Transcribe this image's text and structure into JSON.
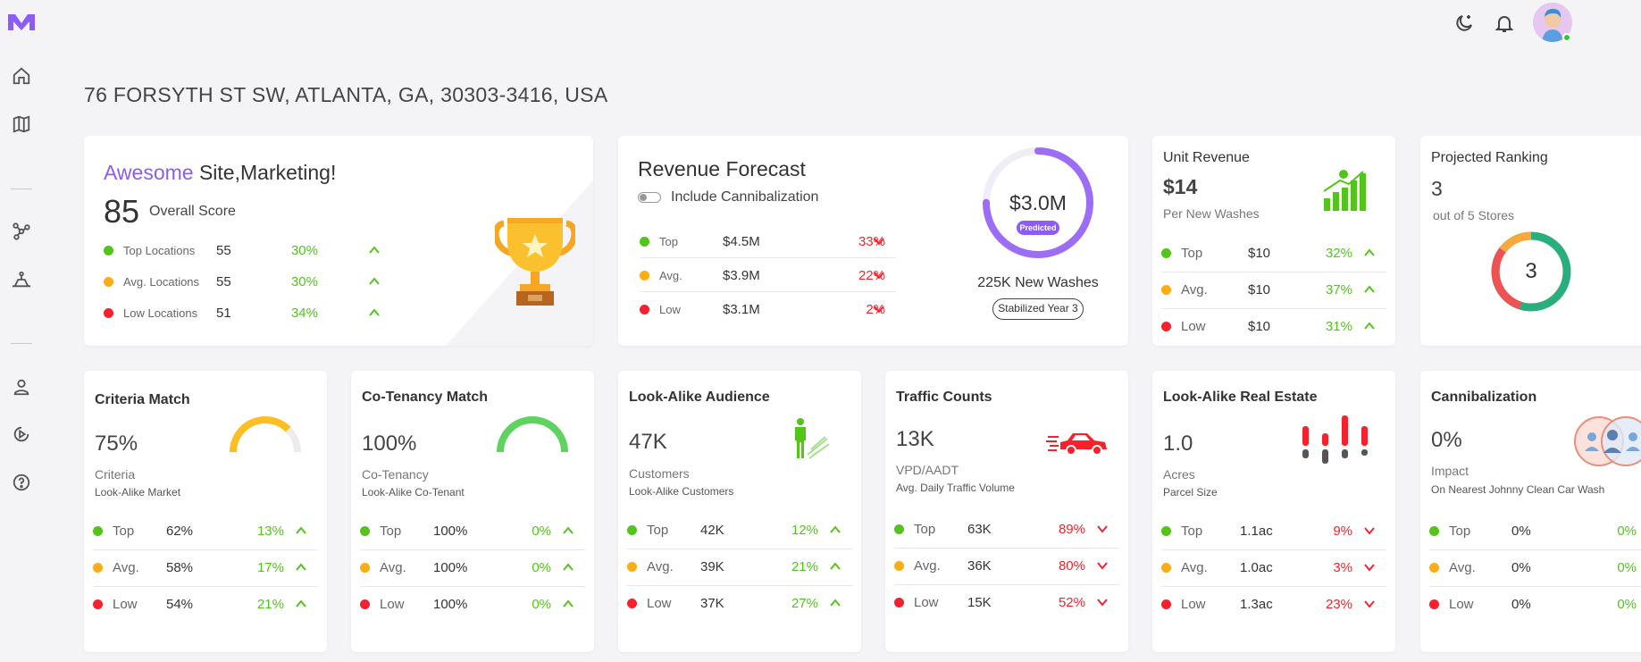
{
  "colors": {
    "accent": "#8b5cf6",
    "green": "#52c41a",
    "yellow": "#faad14",
    "red": "#f5222d"
  },
  "page_title": "76 FORSYTH ST SW, ATLANTA, GA, 30303-3416, USA",
  "score_card": {
    "title_accent": "Awesome",
    "title_rest": " Site,Marketing!",
    "score": "85",
    "score_label": "Overall Score",
    "rows": [
      {
        "label": "Top Locations",
        "value": "55",
        "pct": "30%"
      },
      {
        "label": "Avg. Locations",
        "value": "55",
        "pct": "30%"
      },
      {
        "label": "Low Locations",
        "value": "51",
        "pct": "34%"
      }
    ]
  },
  "revenue": {
    "title": "Revenue Forecast",
    "toggle_label": "Include Cannibalization",
    "ring_value": "$3.0M",
    "ring_badge": "Predicted",
    "ring_fill_fraction": 0.75,
    "washes": "225K New Washes",
    "stabilized": "Stabilized Year 3",
    "rows": [
      {
        "label": "Top",
        "value": "$4.5M",
        "pct": "33%"
      },
      {
        "label": "Avg.",
        "value": "$3.9M",
        "pct": "22%"
      },
      {
        "label": "Low",
        "value": "$3.1M",
        "pct": "2%"
      }
    ]
  },
  "unit_revenue": {
    "title": "Unit Revenue",
    "value": "$14",
    "sub": "Per New Washes",
    "rows": [
      {
        "label": "Top",
        "value": "$10",
        "pct": "32%"
      },
      {
        "label": "Avg.",
        "value": "$10",
        "pct": "37%"
      },
      {
        "label": "Low",
        "value": "$10",
        "pct": "31%"
      }
    ]
  },
  "ranking": {
    "title": "Projected Ranking",
    "value": "3",
    "sub": "out of 5 Stores",
    "donut_value": "3"
  },
  "criteria": {
    "title": "Criteria Match",
    "value": "75%",
    "sub1": "Criteria",
    "sub2": "Look-Alike Market",
    "gauge_fraction": 0.75,
    "rows": [
      {
        "label": "Top",
        "value": "62%",
        "pct": "13%"
      },
      {
        "label": "Avg.",
        "value": "58%",
        "pct": "17%"
      },
      {
        "label": "Low",
        "value": "54%",
        "pct": "21%"
      }
    ]
  },
  "cotenancy": {
    "title": "Co-Tenancy Match",
    "value": "100%",
    "sub1": "Co-Tenancy",
    "sub2": "Look-Alike Co-Tenant",
    "gauge_fraction": 1.0,
    "rows": [
      {
        "label": "Top",
        "value": "100%",
        "pct": "0%"
      },
      {
        "label": "Avg.",
        "value": "100%",
        "pct": "0%"
      },
      {
        "label": "Low",
        "value": "100%",
        "pct": "0%"
      }
    ]
  },
  "audience": {
    "title": "Look-Alike Audience",
    "value": "47K",
    "sub1": "Customers",
    "sub2": "Look-Alike Customers",
    "rows": [
      {
        "label": "Top",
        "value": "42K",
        "pct": "12%"
      },
      {
        "label": "Avg.",
        "value": "39K",
        "pct": "21%"
      },
      {
        "label": "Low",
        "value": "37K",
        "pct": "27%"
      }
    ]
  },
  "traffic": {
    "title": "Traffic Counts",
    "value": "13K",
    "sub1": "VPD/AADT",
    "sub2": "Avg. Daily Traffic Volume",
    "rows": [
      {
        "label": "Top",
        "value": "63K",
        "pct": "89%"
      },
      {
        "label": "Avg.",
        "value": "36K",
        "pct": "80%"
      },
      {
        "label": "Low",
        "value": "15K",
        "pct": "52%"
      }
    ]
  },
  "realestate": {
    "title": "Look-Alike Real Estate",
    "value": "1.0",
    "sub1": "Acres",
    "sub2": "Parcel Size",
    "rows": [
      {
        "label": "Top",
        "value": "1.1ac",
        "pct": "9%"
      },
      {
        "label": "Avg.",
        "value": "1.0ac",
        "pct": "3%"
      },
      {
        "label": "Low",
        "value": "1.3ac",
        "pct": "23%"
      }
    ]
  },
  "cannibal": {
    "title": "Cannibalization",
    "value": "0%",
    "sub1": "Impact",
    "sub2": "On Nearest Johnny Clean Car Wash",
    "rows": [
      {
        "label": "Top",
        "value": "0%",
        "pct": "0%"
      },
      {
        "label": "Avg.",
        "value": "0%",
        "pct": "0%"
      },
      {
        "label": "Low",
        "value": "0%",
        "pct": "0%"
      }
    ]
  }
}
